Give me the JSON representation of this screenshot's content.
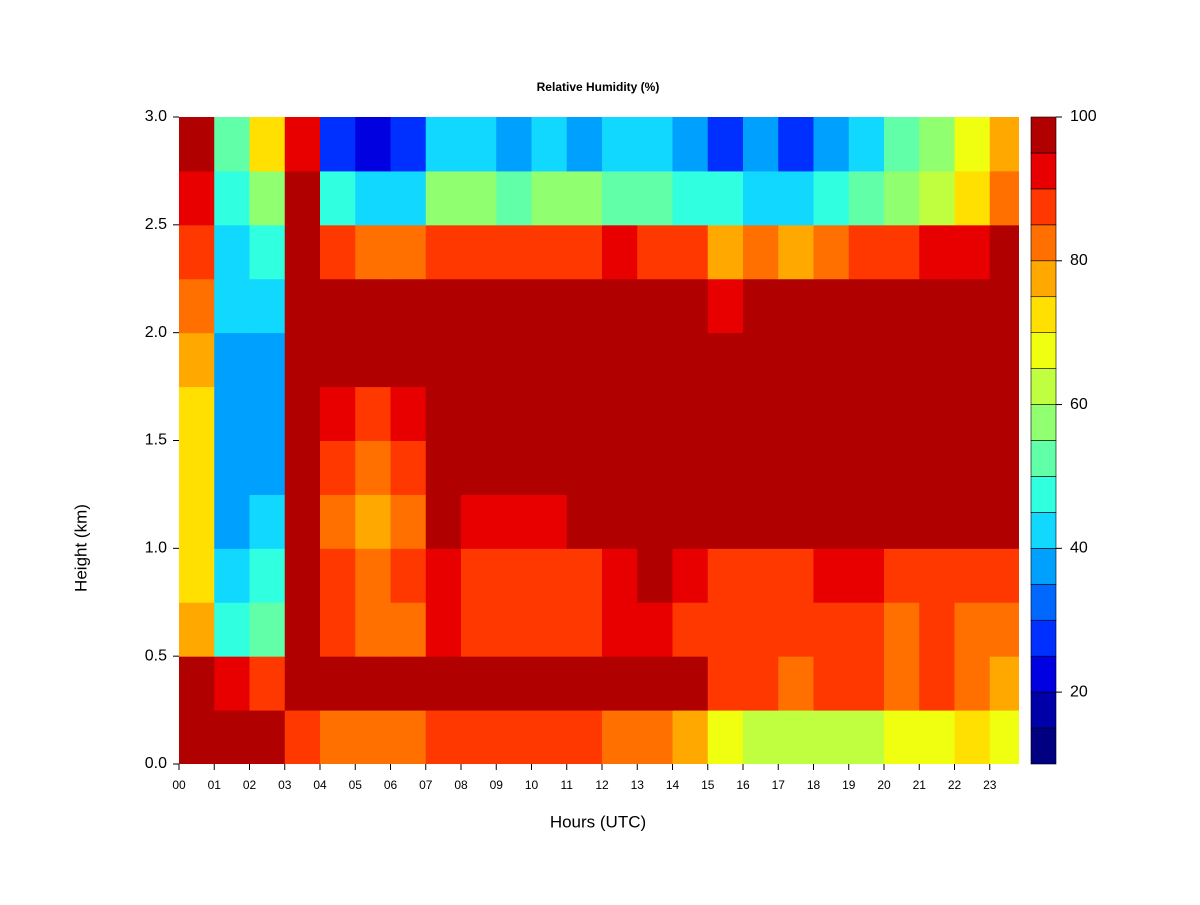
{
  "chart_data": {
    "type": "heatmap",
    "title": "Relative Humidity (%)",
    "xlabel": "Hours (UTC)",
    "ylabel": "Height (km)",
    "x": [
      0.5,
      1.5,
      2.5,
      3.5,
      4.5,
      5.5,
      6.5,
      7.5,
      8.5,
      9.5,
      10.5,
      11.5,
      12.5,
      13.5,
      14.5,
      15.5,
      16.5,
      17.5,
      18.5,
      19.5,
      20.5,
      21.5,
      22.5,
      23.5
    ],
    "y": [
      0.125,
      0.375,
      0.625,
      0.875,
      1.125,
      1.375,
      1.625,
      1.875,
      2.125,
      2.375,
      2.625,
      2.875
    ],
    "z": [
      [
        97,
        97,
        95,
        85,
        80,
        80,
        82,
        85,
        85,
        85,
        85,
        85,
        82,
        80,
        75,
        65,
        62,
        62,
        60,
        62,
        65,
        68,
        70,
        68
      ],
      [
        95,
        90,
        88,
        97,
        95,
        95,
        95,
        97,
        97,
        97,
        97,
        97,
        97,
        97,
        95,
        88,
        85,
        82,
        85,
        85,
        82,
        85,
        82,
        78
      ],
      [
        75,
        45,
        50,
        97,
        85,
        82,
        82,
        90,
        88,
        88,
        87,
        88,
        90,
        92,
        88,
        85,
        85,
        85,
        87,
        85,
        83,
        85,
        82,
        80
      ],
      [
        70,
        40,
        45,
        97,
        85,
        82,
        85,
        92,
        88,
        88,
        88,
        88,
        92,
        95,
        92,
        88,
        88,
        88,
        90,
        90,
        88,
        88,
        88,
        85
      ],
      [
        70,
        38,
        40,
        97,
        82,
        78,
        80,
        95,
        92,
        92,
        90,
        95,
        97,
        97,
        97,
        95,
        95,
        95,
        95,
        95,
        95,
        95,
        95,
        95
      ],
      [
        70,
        38,
        38,
        97,
        85,
        82,
        85,
        97,
        95,
        95,
        95,
        97,
        97,
        97,
        97,
        97,
        97,
        97,
        97,
        97,
        97,
        97,
        97,
        97
      ],
      [
        72,
        35,
        35,
        97,
        90,
        88,
        92,
        97,
        97,
        97,
        97,
        97,
        97,
        97,
        97,
        97,
        97,
        97,
        97,
        97,
        97,
        97,
        97,
        97
      ],
      [
        75,
        38,
        35,
        97,
        95,
        95,
        95,
        97,
        97,
        97,
        97,
        97,
        97,
        97,
        97,
        97,
        97,
        97,
        97,
        97,
        97,
        97,
        97,
        97
      ],
      [
        80,
        40,
        40,
        97,
        97,
        97,
        97,
        97,
        97,
        97,
        97,
        97,
        97,
        97,
        97,
        90,
        95,
        95,
        95,
        97,
        97,
        97,
        97,
        97
      ],
      [
        85,
        42,
        45,
        97,
        85,
        82,
        82,
        88,
        88,
        88,
        88,
        88,
        90,
        88,
        85,
        75,
        80,
        78,
        82,
        85,
        88,
        90,
        92,
        95
      ],
      [
        90,
        45,
        55,
        95,
        45,
        40,
        40,
        55,
        55,
        50,
        55,
        55,
        50,
        50,
        45,
        45,
        40,
        40,
        45,
        50,
        55,
        60,
        70,
        80
      ],
      [
        95,
        50,
        70,
        90,
        25,
        22,
        25,
        40,
        40,
        38,
        40,
        38,
        40,
        40,
        35,
        28,
        35,
        25,
        35,
        40,
        50,
        55,
        65,
        75
      ]
    ],
    "xlim": [
      0,
      23.83
    ],
    "ylim": [
      0,
      3
    ],
    "xticks": [
      {
        "value": 0,
        "label": "00"
      },
      {
        "value": 1,
        "label": "01"
      },
      {
        "value": 2,
        "label": "02"
      },
      {
        "value": 3,
        "label": "03"
      },
      {
        "value": 4,
        "label": "04"
      },
      {
        "value": 5,
        "label": "05"
      },
      {
        "value": 6,
        "label": "06"
      },
      {
        "value": 7,
        "label": "07"
      },
      {
        "value": 8,
        "label": "08"
      },
      {
        "value": 9,
        "label": "09"
      },
      10,
      11,
      12,
      13,
      14,
      15,
      16,
      17,
      18,
      19,
      20,
      21,
      22,
      23
    ],
    "yticks": [
      {
        "value": 0,
        "label": "0.0"
      },
      0.5,
      {
        "value": 1,
        "label": "1.0"
      },
      1.5,
      {
        "value": 2,
        "label": "2.0"
      },
      2.5,
      {
        "value": 3,
        "label": "3.0"
      }
    ],
    "levels": [
      10,
      15,
      20,
      25,
      30,
      35,
      40,
      45,
      50,
      55,
      60,
      65,
      70,
      75,
      80,
      85,
      90,
      95,
      100
    ],
    "colors": [
      "#000080",
      "#0000a8",
      "#0000e0",
      "#0030ff",
      "#0068ff",
      "#00a0ff",
      "#10d8ff",
      "#30ffe0",
      "#60ffa8",
      "#90ff70",
      "#c0ff40",
      "#f0ff10",
      "#ffe000",
      "#ffa800",
      "#ff7000",
      "#ff3800",
      "#e80000",
      "#b00000",
      "#800000"
    ],
    "cbar_ticks": [
      20,
      40,
      60,
      80,
      100
    ]
  }
}
